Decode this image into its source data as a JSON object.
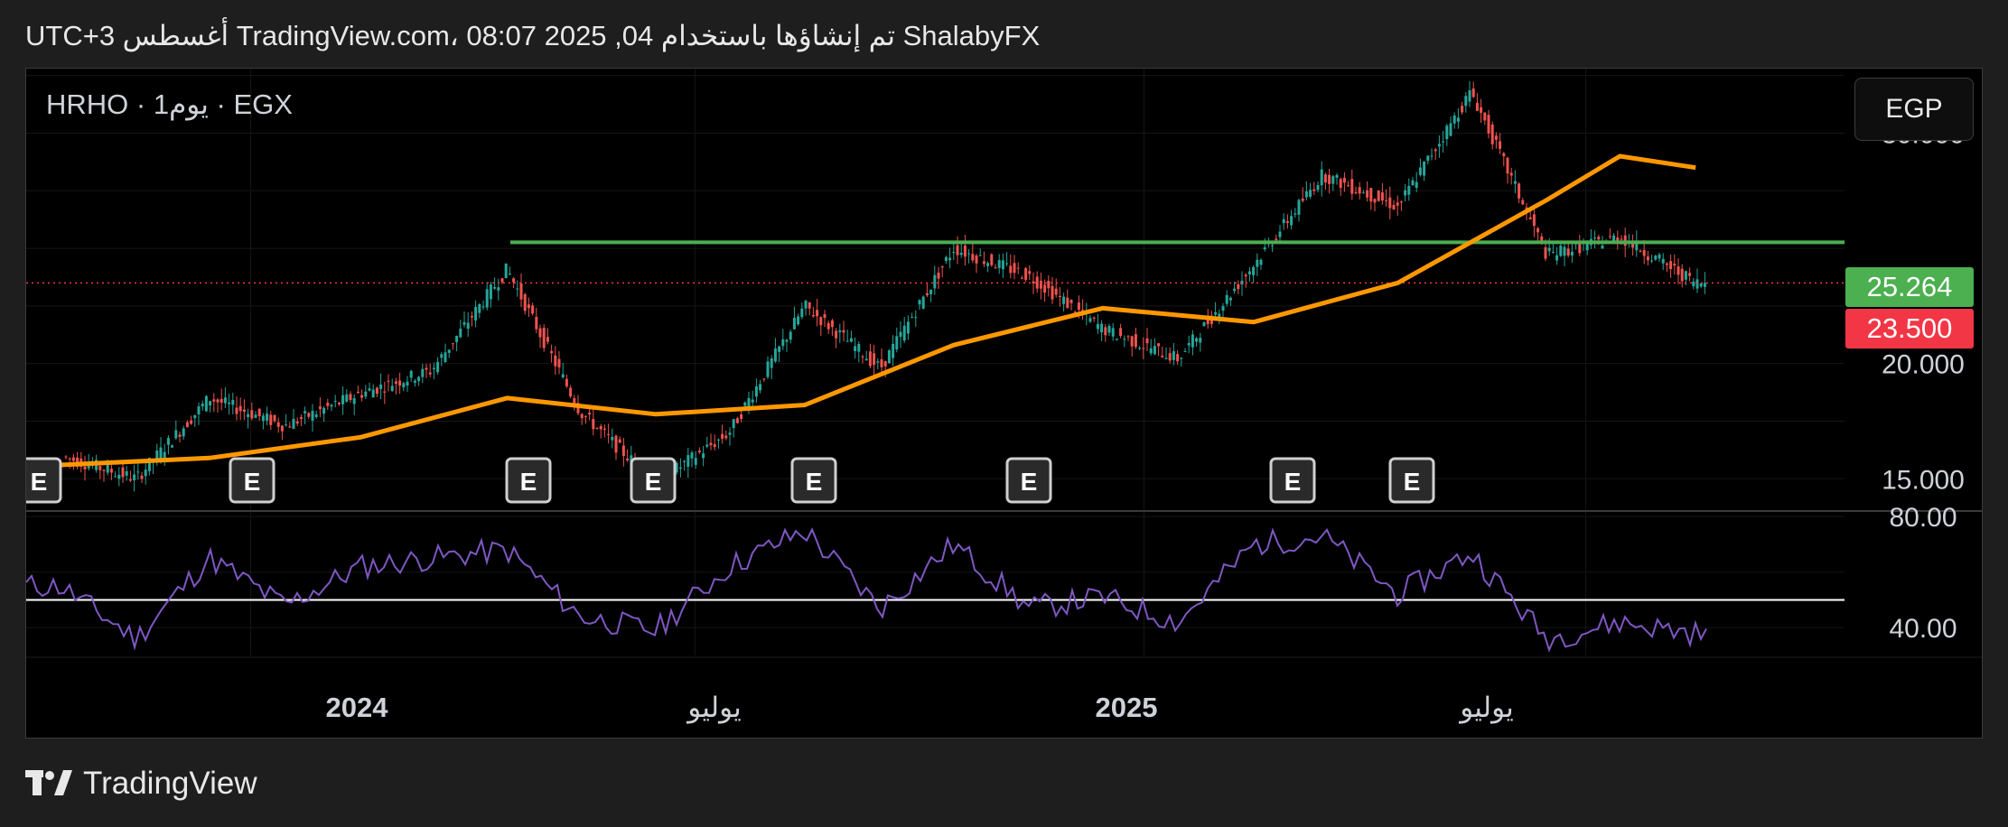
{
  "header": {
    "text": "ShalabyFX تم إنشاؤها باستخدام TradingView.com، 08:07 2025 ,04 أغسطس UTC+3"
  },
  "symbol": {
    "label": "HRHO · 1يوم · EGX"
  },
  "currency": {
    "label": "EGP"
  },
  "price_tags": {
    "level": "25.264",
    "last": "23.500"
  },
  "footer": {
    "brand": "TradingView",
    "logo_icon": "tradingview-logo-icon"
  },
  "colors": {
    "up": "#26a69a",
    "down": "#ef5350",
    "ma": "#ff9800",
    "level": "#4caf50",
    "last_price": "#f23645",
    "rsi": "#7e57c2",
    "rsi_mid": "#ffffff"
  },
  "chart_data": [
    {
      "type": "candlestick",
      "title": "HRHO · 1يوم · EGX",
      "ylim": [
        13.6,
        32.8
      ],
      "y_ticks": [
        "30.000",
        "20.000",
        "15.000"
      ],
      "x_ticks": [
        "2024",
        "يوليو",
        "2025",
        "يوليو"
      ],
      "series": [
        {
          "name": "close",
          "x": [
            "2023-10",
            "2023-11",
            "2023-12",
            "2024-01",
            "2024-02",
            "2024-03",
            "2024-04",
            "2024-05",
            "2024-06",
            "2024-07",
            "2024-08",
            "2024-09",
            "2024-10",
            "2024-11",
            "2024-12",
            "2025-01",
            "2025-02",
            "2025-03",
            "2025-04",
            "2025-05",
            "2025-06",
            "2025-07",
            "2025-08"
          ],
          "values": [
            16.0,
            15.0,
            18.5,
            17.3,
            18.7,
            19.7,
            24.1,
            17.9,
            14.8,
            17.0,
            22.5,
            19.8,
            25.0,
            23.8,
            21.5,
            20.2,
            24.3,
            28.2,
            26.8,
            31.8,
            24.7,
            25.5,
            23.5
          ]
        },
        {
          "name": "moving average",
          "x": [
            "2023-10",
            "2023-12",
            "2024-02",
            "2024-04",
            "2024-06",
            "2024-08",
            "2024-10",
            "2024-12",
            "2025-02",
            "2025-04",
            "2025-06",
            "2025-07",
            "2025-08"
          ],
          "values": [
            15.6,
            15.9,
            16.8,
            18.5,
            17.8,
            18.2,
            20.8,
            22.4,
            21.8,
            23.5,
            27.1,
            29.0,
            28.5
          ]
        }
      ],
      "horizontal_level": 25.264,
      "last_price": 23.5,
      "earnings_markers": 8,
      "earnings_label": "E",
      "legend": "none",
      "grid": true
    },
    {
      "type": "line",
      "title": "",
      "ylim": [
        30,
        82
      ],
      "y_ticks": [
        "80.00",
        "40.00"
      ],
      "series": [
        {
          "name": "",
          "x": [
            "2023-10",
            "2023-11",
            "2023-12",
            "2024-01",
            "2024-02",
            "2024-03",
            "2024-04",
            "2024-05",
            "2024-06",
            "2024-07",
            "2024-08",
            "2024-09",
            "2024-10",
            "2024-11",
            "2024-12",
            "2025-01",
            "2025-02",
            "2025-03",
            "2025-04",
            "2025-05",
            "2025-06",
            "2025-07",
            "2025-08"
          ],
          "values": [
            55,
            36,
            65,
            48,
            62,
            65,
            68,
            44,
            39,
            62,
            75,
            47,
            70,
            47,
            51,
            42,
            70,
            73,
            52,
            67,
            36,
            42,
            38
          ]
        }
      ],
      "midline": 50,
      "legend": "none",
      "grid": true
    }
  ]
}
